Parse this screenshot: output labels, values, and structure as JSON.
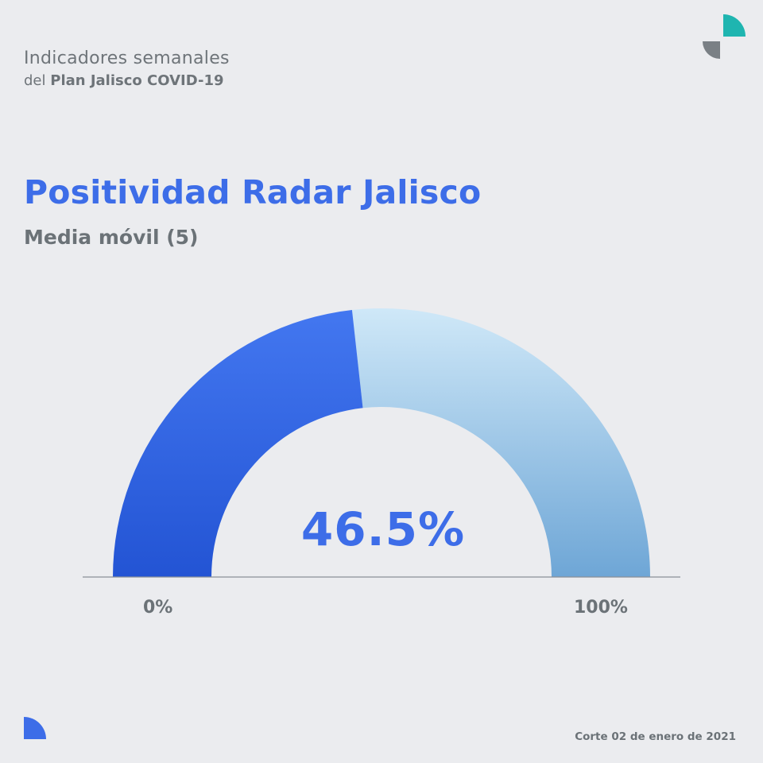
{
  "header": {
    "line1": "Indicadores semanales",
    "line2_prefix": "del",
    "line2_bold": "Plan Jalisco COVID-19"
  },
  "title": "Positividad Radar Jalisco",
  "subtitle": "Media móvil (5)",
  "footer": "Corte 02 de enero de 2021",
  "colors": {
    "accent": "#3d6de8",
    "filled_top": "#4377f0",
    "filled_bottom": "#2354d4",
    "remaining_top": "#cfe8f8",
    "remaining_bottom": "#6ea6d6",
    "logo_teal": "#1fb5b0",
    "logo_gray": "#7a8085",
    "text_gray": "#6b7277"
  },
  "chart_data": {
    "type": "gauge",
    "value": 46.5,
    "value_label": "46.5%",
    "min": 0,
    "max": 100,
    "min_label": "0%",
    "max_label": "100%"
  }
}
